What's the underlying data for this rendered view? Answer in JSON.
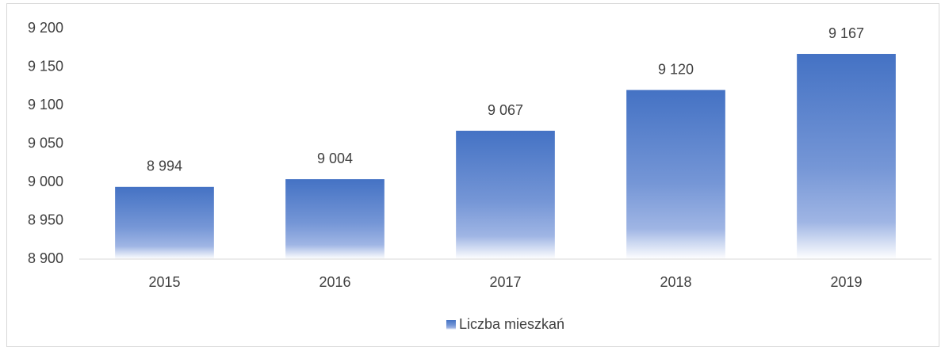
{
  "chart_data": {
    "type": "bar",
    "categories": [
      "2015",
      "2016",
      "2017",
      "2018",
      "2019"
    ],
    "series": [
      {
        "name": "Liczba mieszkań",
        "color": "#4472c4",
        "values": [
          8994,
          9004,
          9067,
          9120,
          9167
        ],
        "value_labels": [
          "8 994",
          "9 004",
          "9 067",
          "9 120",
          "9 167"
        ]
      }
    ],
    "ylim": [
      8900,
      9200
    ],
    "yticks": [
      {
        "value": 8900,
        "label": "8 900"
      },
      {
        "value": 8950,
        "label": "8 950"
      },
      {
        "value": 9000,
        "label": "9 000"
      },
      {
        "value": 9050,
        "label": "9 050"
      },
      {
        "value": 9100,
        "label": "9 100"
      },
      {
        "value": 9150,
        "label": "9 150"
      },
      {
        "value": 9200,
        "label": "9 200"
      }
    ],
    "grid": false,
    "legend": "bottom"
  }
}
